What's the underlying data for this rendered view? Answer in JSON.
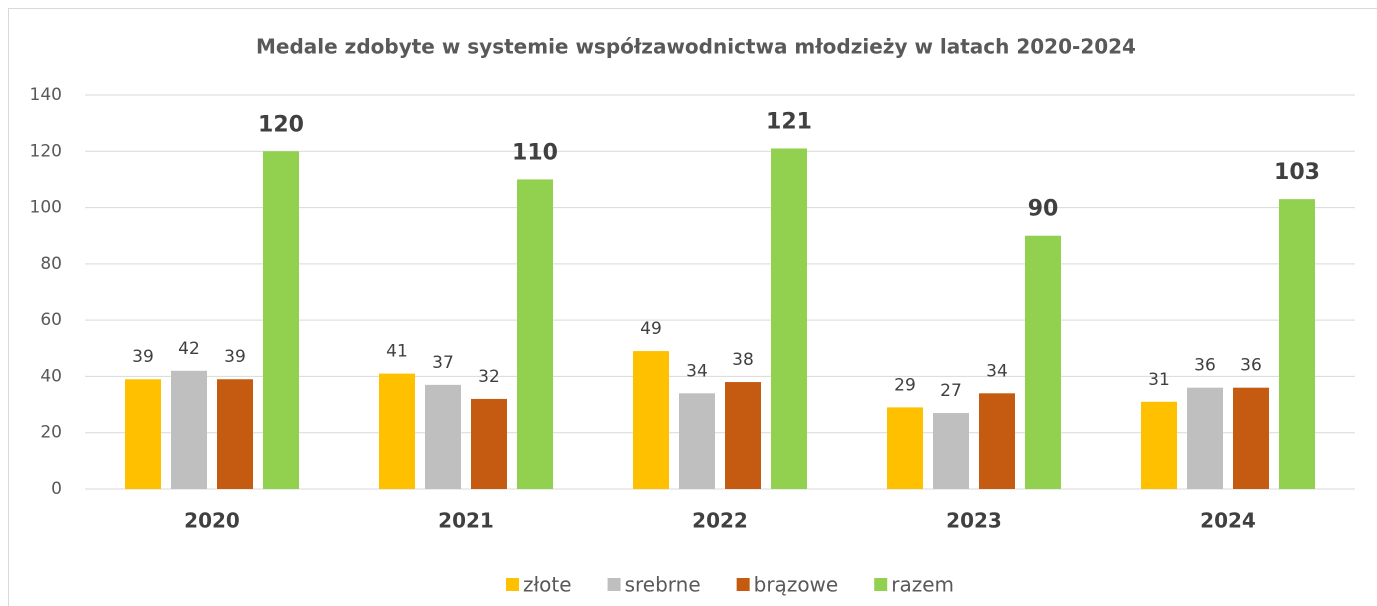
{
  "chart_data": {
    "type": "bar",
    "title": "Medale zdobyte w systemie współzawodnictwa młodzieży w latach 2020-2024",
    "categories": [
      "2020",
      "2021",
      "2022",
      "2023",
      "2024"
    ],
    "series": [
      {
        "name": "złote",
        "color": "#ffc000",
        "values": [
          39,
          41,
          49,
          29,
          31
        ]
      },
      {
        "name": "srebrne",
        "color": "#bfbfbf",
        "values": [
          42,
          37,
          34,
          27,
          36
        ]
      },
      {
        "name": "brązowe",
        "color": "#c55a11",
        "values": [
          39,
          32,
          38,
          34,
          36
        ]
      },
      {
        "name": "razem",
        "color": "#92d050",
        "values": [
          120,
          110,
          121,
          90,
          103
        ]
      }
    ],
    "ylim": [
      0,
      140
    ],
    "yticks": [
      0,
      20,
      40,
      60,
      80,
      100,
      120,
      140
    ],
    "grid": true,
    "legend": "bottom"
  }
}
